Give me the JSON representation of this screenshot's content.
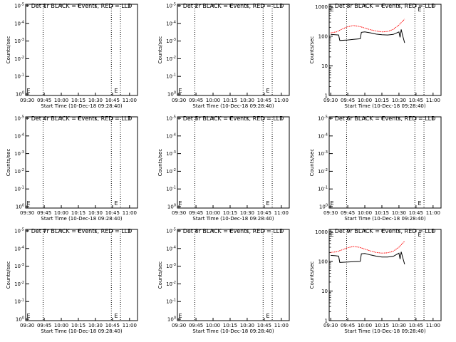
{
  "chart_data": [
    {
      "type": "line",
      "title": "Det 1r BLACK = Events, RED = LLD",
      "xlabel": "Start Time (10-Dec-18 09:28:40)",
      "ylabel": "Counts/sec",
      "x_ticks": [
        "09:30",
        "09:45",
        "10:00",
        "10:15",
        "10:30",
        "10:45",
        "11:00"
      ],
      "y_scale": "log",
      "y_ticks": [
        "10^0",
        "10^-1",
        "10^-2",
        "10^-3",
        "10^-4",
        "10^-5"
      ],
      "vlines": [
        "09:44",
        "10:44",
        "10:52"
      ],
      "markers": [
        [
          "09:29",
          "E"
        ],
        [
          "10:46",
          "E"
        ]
      ],
      "series": []
    },
    {
      "type": "line",
      "title": "Det 2r BLACK = Events, RED = LLD",
      "xlabel": "Start Time (10-Dec-18 09:28:40)",
      "ylabel": "Counts/sec",
      "x_ticks": [
        "09:30",
        "09:45",
        "10:00",
        "10:15",
        "10:30",
        "10:45",
        "11:00"
      ],
      "y_scale": "log",
      "y_ticks": [
        "10^0",
        "10^-1",
        "10^-2",
        "10^-3",
        "10^-4",
        "10^-5"
      ],
      "vlines": [
        "09:44",
        "10:44",
        "10:52"
      ],
      "markers": [
        [
          "09:29",
          "E"
        ],
        [
          "10:46",
          "E"
        ]
      ],
      "series": []
    },
    {
      "type": "line",
      "title": "Det 3r BLACK = Events, RED = LLD",
      "xlabel": "Start Time (10-Dec-18 09:28:40)",
      "ylabel": "Counts/sec",
      "x_ticks": [
        "09:30",
        "09:45",
        "10:00",
        "10:15",
        "10:30",
        "10:45",
        "11:00"
      ],
      "y_scale": "log",
      "y_ticks": [
        "1000",
        "100",
        "10",
        "1"
      ],
      "vlines": [
        "09:44",
        "10:44",
        "10:52"
      ],
      "markers": [
        [
          "09:29",
          "E"
        ],
        [
          "10:46",
          "E"
        ]
      ],
      "series": [
        {
          "color": "#ff0000",
          "x": [
            "09:30",
            "09:35",
            "09:40",
            "09:45",
            "09:50",
            "09:55",
            "10:00",
            "10:05",
            "10:10",
            "10:15",
            "10:20",
            "10:25",
            "10:30",
            "10:35"
          ],
          "values": [
            130,
            140,
            175,
            210,
            230,
            215,
            190,
            165,
            150,
            140,
            145,
            170,
            240,
            380
          ]
        },
        {
          "color": "#000000",
          "x": [
            "09:30",
            "09:34",
            "09:37",
            "09:38",
            "09:45",
            "09:50",
            "09:56",
            "09:57",
            "10:00",
            "10:05",
            "10:10",
            "10:15",
            "10:20",
            "10:25",
            "10:30",
            "10:31",
            "10:32",
            "10:33",
            "10:35"
          ],
          "values": [
            115,
            112,
            110,
            72,
            75,
            78,
            82,
            135,
            140,
            130,
            118,
            112,
            110,
            115,
            140,
            92,
            170,
            115,
            60
          ]
        }
      ]
    },
    {
      "type": "line",
      "title": "Det 4r BLACK = Events, RED = LLD",
      "xlabel": "Start Time (10-Dec-18 09:28:40)",
      "ylabel": "Counts/sec",
      "x_ticks": [
        "09:30",
        "09:45",
        "10:00",
        "10:15",
        "10:30",
        "10:45",
        "11:00"
      ],
      "y_scale": "log",
      "y_ticks": [
        "10^0",
        "10^-1",
        "10^-2",
        "10^-3",
        "10^-4",
        "10^-5"
      ],
      "vlines": [
        "09:44",
        "10:44",
        "10:52"
      ],
      "markers": [
        [
          "09:29",
          "E"
        ],
        [
          "10:46",
          "E"
        ]
      ],
      "series": []
    },
    {
      "type": "line",
      "title": "Det 5r BLACK = Events, RED = LLD",
      "xlabel": "Start Time (10-Dec-18 09:28:40)",
      "ylabel": "Counts/sec",
      "x_ticks": [
        "09:30",
        "09:45",
        "10:00",
        "10:15",
        "10:30",
        "10:45",
        "11:00"
      ],
      "y_scale": "log",
      "y_ticks": [
        "10^0",
        "10^-1",
        "10^-2",
        "10^-3",
        "10^-4",
        "10^-5"
      ],
      "vlines": [
        "09:44",
        "10:44",
        "10:52"
      ],
      "markers": [
        [
          "09:29",
          "E"
        ],
        [
          "10:46",
          "E"
        ]
      ],
      "series": []
    },
    {
      "type": "line",
      "title": "Det 6r BLACK = Events, RED = LLD",
      "xlabel": "Start Time (10-Dec-18 09:28:40)",
      "ylabel": "Counts/sec",
      "x_ticks": [
        "09:30",
        "09:45",
        "10:00",
        "10:15",
        "10:30",
        "10:45",
        "11:00"
      ],
      "y_scale": "log",
      "y_ticks": [
        "10^0",
        "10^-1",
        "10^-2",
        "10^-3",
        "10^-4",
        "10^-5"
      ],
      "vlines": [
        "09:44",
        "10:44",
        "10:52"
      ],
      "markers": [
        [
          "09:29",
          "E"
        ],
        [
          "10:46",
          "E"
        ]
      ],
      "series": []
    },
    {
      "type": "line",
      "title": "Det 7r BLACK = Events, RED = LLD",
      "xlabel": "Start Time (10-Dec-18 09:28:40)",
      "ylabel": "Counts/sec",
      "x_ticks": [
        "09:30",
        "09:45",
        "10:00",
        "10:15",
        "10:30",
        "10:45",
        "11:00"
      ],
      "y_scale": "log",
      "y_ticks": [
        "10^0",
        "10^-1",
        "10^-2",
        "10^-3",
        "10^-4",
        "10^-5"
      ],
      "vlines": [
        "09:44",
        "10:44",
        "10:52"
      ],
      "markers": [
        [
          "09:29",
          "E"
        ],
        [
          "10:46",
          "E"
        ]
      ],
      "series": []
    },
    {
      "type": "line",
      "title": "Det 8r BLACK = Events, RED = LLD",
      "xlabel": "Start Time (10-Dec-18 09:28:40)",
      "ylabel": "Counts/sec",
      "x_ticks": [
        "09:30",
        "09:45",
        "10:00",
        "10:15",
        "10:30",
        "10:45",
        "11:00"
      ],
      "y_scale": "log",
      "y_ticks": [
        "10^0",
        "10^-1",
        "10^-2",
        "10^-3",
        "10^-4",
        "10^-5"
      ],
      "vlines": [
        "09:44",
        "10:44",
        "10:52"
      ],
      "markers": [
        [
          "09:29",
          "E"
        ],
        [
          "10:46",
          "E"
        ]
      ],
      "series": []
    },
    {
      "type": "line",
      "title": "Det 9r BLACK = Events, RED = LLD",
      "xlabel": "Start Time (10-Dec-18 09:28:40)",
      "ylabel": "Counts/sec",
      "x_ticks": [
        "09:30",
        "09:45",
        "10:00",
        "10:15",
        "10:30",
        "10:45",
        "11:00"
      ],
      "y_scale": "log",
      "y_ticks": [
        "1000",
        "100",
        "10",
        "1"
      ],
      "vlines": [
        "09:44",
        "10:44",
        "10:52"
      ],
      "markers": [
        [
          "09:29",
          "E"
        ],
        [
          "10:46",
          "E"
        ]
      ],
      "series": [
        {
          "color": "#ff0000",
          "x": [
            "09:30",
            "09:35",
            "09:40",
            "09:45",
            "09:50",
            "09:55",
            "10:00",
            "10:05",
            "10:10",
            "10:15",
            "10:20",
            "10:25",
            "10:30",
            "10:35"
          ],
          "values": [
            200,
            210,
            245,
            290,
            320,
            300,
            260,
            225,
            200,
            190,
            195,
            220,
            300,
            480
          ]
        },
        {
          "color": "#000000",
          "x": [
            "09:30",
            "09:34",
            "09:37",
            "09:38",
            "09:45",
            "09:50",
            "09:56",
            "09:57",
            "10:00",
            "10:05",
            "10:10",
            "10:15",
            "10:20",
            "10:25",
            "10:30",
            "10:31",
            "10:32",
            "10:33",
            "10:35"
          ],
          "values": [
            160,
            155,
            150,
            92,
            95,
            98,
            100,
            180,
            185,
            165,
            150,
            140,
            140,
            148,
            190,
            120,
            210,
            150,
            80
          ]
        }
      ]
    }
  ]
}
